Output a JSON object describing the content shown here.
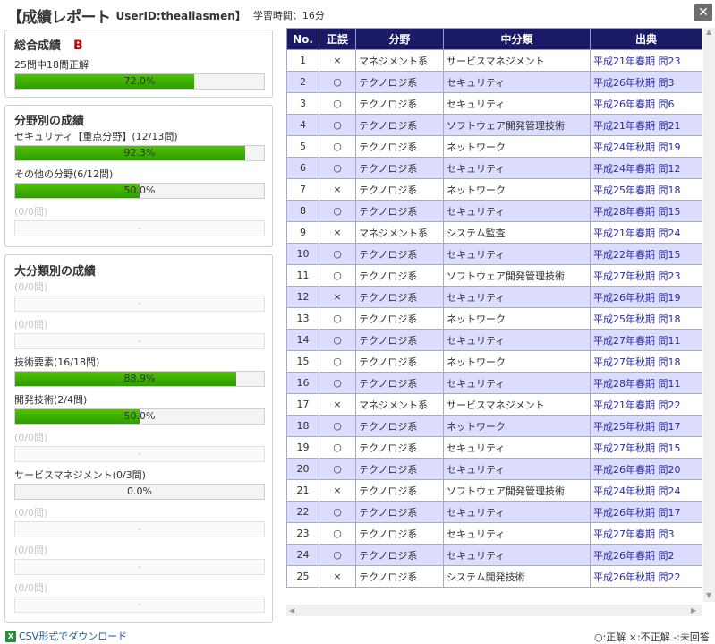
{
  "header": {
    "title": "【成績レポート",
    "user": "UserID:thealiasmen】",
    "time": "学習時間：16分",
    "close_label": "✕"
  },
  "overall": {
    "title": "総合成績",
    "grade": "B",
    "summary": "25問中18問正解",
    "percent_text": "72.0%",
    "percent": 72.0
  },
  "fields": {
    "title": "分野別の成績",
    "items": [
      {
        "label": "セキュリティ【重点分野】(12/13問)",
        "percent_text": "92.3%",
        "percent": 92.3
      },
      {
        "label": "その他の分野(6/12問)",
        "percent_text": "50.0%",
        "percent": 50.0
      },
      {
        "label": "(0/0問)",
        "percent_text": "-",
        "percent": 0
      }
    ]
  },
  "categories": {
    "title": "大分類別の成績",
    "items": [
      {
        "label": "(0/0問)",
        "percent_text": "-",
        "percent": 0
      },
      {
        "label": "(0/0問)",
        "percent_text": "-",
        "percent": 0
      },
      {
        "label": "技術要素(16/18問)",
        "percent_text": "88.9%",
        "percent": 88.9
      },
      {
        "label": "開発技術(2/4問)",
        "percent_text": "50.0%",
        "percent": 50.0
      },
      {
        "label": "(0/0問)",
        "percent_text": "-",
        "percent": 0
      },
      {
        "label": "サービスマネジメント(0/3問)",
        "percent_text": "0.0%",
        "percent": 0.0
      },
      {
        "label": "(0/0問)",
        "percent_text": "-",
        "percent": 0
      },
      {
        "label": "(0/0問)",
        "percent_text": "-",
        "percent": 0
      },
      {
        "label": "(0/0問)",
        "percent_text": "-",
        "percent": 0
      }
    ]
  },
  "table": {
    "headers": [
      "No.",
      "正誤",
      "分野",
      "中分類",
      "出典"
    ],
    "rows": [
      {
        "no": "1",
        "mark": "×",
        "field": "マネジメント系",
        "sub": "サービスマネジメント",
        "src": "平成21年春期 問23"
      },
      {
        "no": "2",
        "mark": "○",
        "field": "テクノロジ系",
        "sub": "セキュリティ",
        "src": "平成26年秋期 問3"
      },
      {
        "no": "3",
        "mark": "○",
        "field": "テクノロジ系",
        "sub": "セキュリティ",
        "src": "平成26年春期 問6"
      },
      {
        "no": "4",
        "mark": "○",
        "field": "テクノロジ系",
        "sub": "ソフトウェア開発管理技術",
        "src": "平成21年春期 問21"
      },
      {
        "no": "5",
        "mark": "○",
        "field": "テクノロジ系",
        "sub": "ネットワーク",
        "src": "平成24年秋期 問19"
      },
      {
        "no": "6",
        "mark": "○",
        "field": "テクノロジ系",
        "sub": "セキュリティ",
        "src": "平成24年春期 問12"
      },
      {
        "no": "7",
        "mark": "×",
        "field": "テクノロジ系",
        "sub": "ネットワーク",
        "src": "平成25年春期 問18"
      },
      {
        "no": "8",
        "mark": "○",
        "field": "テクノロジ系",
        "sub": "セキュリティ",
        "src": "平成28年春期 問15"
      },
      {
        "no": "9",
        "mark": "×",
        "field": "マネジメント系",
        "sub": "システム監査",
        "src": "平成21年春期 問24"
      },
      {
        "no": "10",
        "mark": "○",
        "field": "テクノロジ系",
        "sub": "セキュリティ",
        "src": "平成22年春期 問15"
      },
      {
        "no": "11",
        "mark": "○",
        "field": "テクノロジ系",
        "sub": "ソフトウェア開発管理技術",
        "src": "平成27年秋期 問23"
      },
      {
        "no": "12",
        "mark": "×",
        "field": "テクノロジ系",
        "sub": "セキュリティ",
        "src": "平成26年秋期 問19"
      },
      {
        "no": "13",
        "mark": "○",
        "field": "テクノロジ系",
        "sub": "ネットワーク",
        "src": "平成25年秋期 問18"
      },
      {
        "no": "14",
        "mark": "○",
        "field": "テクノロジ系",
        "sub": "セキュリティ",
        "src": "平成27年春期 問11"
      },
      {
        "no": "15",
        "mark": "○",
        "field": "テクノロジ系",
        "sub": "ネットワーク",
        "src": "平成27年秋期 問18"
      },
      {
        "no": "16",
        "mark": "○",
        "field": "テクノロジ系",
        "sub": "セキュリティ",
        "src": "平成28年春期 問11"
      },
      {
        "no": "17",
        "mark": "×",
        "field": "マネジメント系",
        "sub": "サービスマネジメント",
        "src": "平成21年春期 問22"
      },
      {
        "no": "18",
        "mark": "○",
        "field": "テクノロジ系",
        "sub": "ネットワーク",
        "src": "平成25年秋期 問17"
      },
      {
        "no": "19",
        "mark": "○",
        "field": "テクノロジ系",
        "sub": "セキュリティ",
        "src": "平成27年秋期 問15"
      },
      {
        "no": "20",
        "mark": "○",
        "field": "テクノロジ系",
        "sub": "セキュリティ",
        "src": "平成26年春期 問20"
      },
      {
        "no": "21",
        "mark": "×",
        "field": "テクノロジ系",
        "sub": "ソフトウェア開発管理技術",
        "src": "平成24年秋期 問24"
      },
      {
        "no": "22",
        "mark": "○",
        "field": "テクノロジ系",
        "sub": "セキュリティ",
        "src": "平成26年秋期 問17"
      },
      {
        "no": "23",
        "mark": "○",
        "field": "テクノロジ系",
        "sub": "セキュリティ",
        "src": "平成27年春期 問3"
      },
      {
        "no": "24",
        "mark": "○",
        "field": "テクノロジ系",
        "sub": "セキュリティ",
        "src": "平成26年春期 問2"
      },
      {
        "no": "25",
        "mark": "×",
        "field": "テクノロジ系",
        "sub": "システム開発技術",
        "src": "平成26年秋期 問22"
      }
    ]
  },
  "footer": {
    "csv_label": "CSV形式でダウンロード",
    "legend": "○:正解 ×:不正解 -:未回答"
  },
  "colors": {
    "header_bg": "#1a1a66",
    "row_alt": "#dcdcff",
    "bar_green": "#3fb400",
    "grade_red": "#d10000"
  }
}
